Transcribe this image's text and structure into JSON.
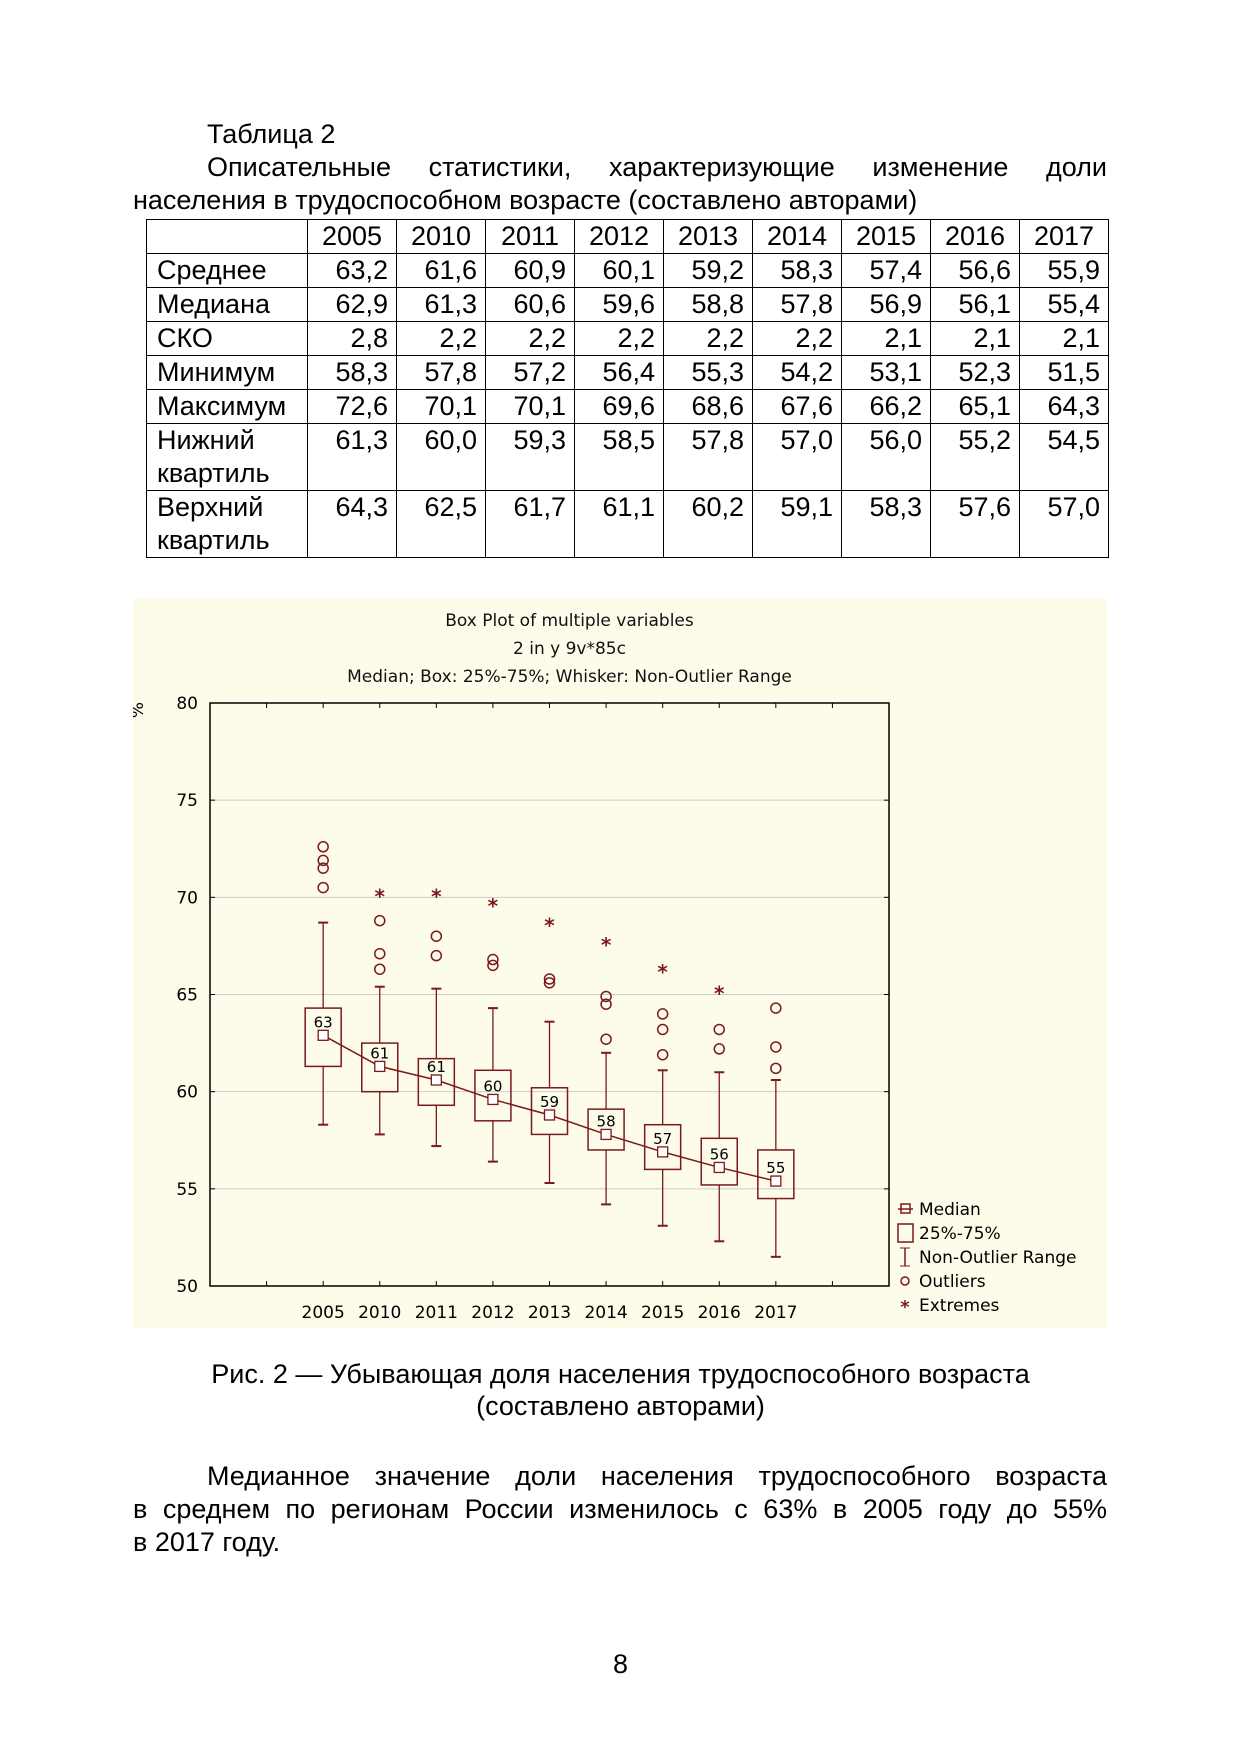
{
  "table_caption": {
    "number": "Таблица 2",
    "line1": "Описательные статистики, характеризующие изменение доли",
    "line2": "населения в трудоспособном возрасте (составлено авторами)"
  },
  "table": {
    "columns": [
      "2005",
      "2010",
      "2011",
      "2012",
      "2013",
      "2014",
      "2015",
      "2016",
      "2017"
    ],
    "rows": [
      {
        "label": "Среднее",
        "values": [
          "63,2",
          "61,6",
          "60,9",
          "60,1",
          "59,2",
          "58,3",
          "57,4",
          "56,6",
          "55,9"
        ]
      },
      {
        "label": "Медиана",
        "values": [
          "62,9",
          "61,3",
          "60,6",
          "59,6",
          "58,8",
          "57,8",
          "56,9",
          "56,1",
          "55,4"
        ]
      },
      {
        "label": "СКО",
        "values": [
          "2,8",
          "2,2",
          "2,2",
          "2,2",
          "2,2",
          "2,2",
          "2,1",
          "2,1",
          "2,1"
        ]
      },
      {
        "label": "Минимум",
        "values": [
          "58,3",
          "57,8",
          "57,2",
          "56,4",
          "55,3",
          "54,2",
          "53,1",
          "52,3",
          "51,5"
        ]
      },
      {
        "label": "Максимум",
        "values": [
          "72,6",
          "70,1",
          "70,1",
          "69,6",
          "68,6",
          "67,6",
          "66,2",
          "65,1",
          "64,3"
        ]
      },
      {
        "label": "Нижний квартиль",
        "values": [
          "61,3",
          "60,0",
          "59,3",
          "58,5",
          "57,8",
          "57,0",
          "56,0",
          "55,2",
          "54,5"
        ]
      },
      {
        "label": "Верхний квартиль",
        "values": [
          "64,3",
          "62,5",
          "61,7",
          "61,1",
          "60,2",
          "59,1",
          "58,3",
          "57,6",
          "57,0"
        ]
      }
    ]
  },
  "chart_data": {
    "type": "boxplot",
    "title": "Box Plot of multiple variables",
    "subtitle": "2 in y 9v*85c",
    "subtitle2": "Median; Box: 25%-75%; Whisker: Non-Outlier Range",
    "ylabel": "%",
    "ylim": [
      50,
      80
    ],
    "yticks": [
      "50",
      "55",
      "60",
      "65",
      "70",
      "75",
      "80"
    ],
    "categories": [
      "2005",
      "2010",
      "2011",
      "2012",
      "2013",
      "2014",
      "2015",
      "2016",
      "2017"
    ],
    "median": [
      62.9,
      61.3,
      60.6,
      59.6,
      58.8,
      57.8,
      56.9,
      56.1,
      55.4
    ],
    "median_labels": [
      "63",
      "61",
      "61",
      "60",
      "59",
      "58",
      "57",
      "56",
      "55"
    ],
    "q1": [
      61.3,
      60.0,
      59.3,
      58.5,
      57.8,
      57.0,
      56.0,
      55.2,
      54.5
    ],
    "q3": [
      64.3,
      62.5,
      61.7,
      61.1,
      60.2,
      59.1,
      58.3,
      57.6,
      57.0
    ],
    "whisker_low": [
      58.3,
      57.8,
      57.2,
      56.4,
      55.3,
      54.2,
      53.1,
      52.3,
      51.5
    ],
    "whisker_high": [
      68.7,
      65.4,
      65.3,
      64.3,
      63.6,
      62.0,
      61.1,
      61.0,
      60.6
    ],
    "outliers": [
      [
        72.6,
        71.9,
        71.5,
        70.5
      ],
      [
        68.8,
        67.1,
        66.3
      ],
      [
        68.0,
        67.0
      ],
      [
        66.8,
        66.5
      ],
      [
        65.8,
        65.6
      ],
      [
        64.9,
        64.5,
        62.7
      ],
      [
        64.0,
        63.2,
        61.9
      ],
      [
        63.2,
        62.2
      ],
      [
        64.3,
        62.3,
        61.2
      ]
    ],
    "extremes": [
      [],
      [
        70.1
      ],
      [
        70.1
      ],
      [
        69.6
      ],
      [
        68.6
      ],
      [
        67.6
      ],
      [
        66.2
      ],
      [
        65.1
      ],
      []
    ],
    "legend": [
      "Median",
      "25%-75%",
      "Non-Outlier Range",
      "Outliers",
      "Extremes"
    ],
    "legend_position": "bottom-right",
    "color": "#7a1a1a"
  },
  "figure_caption": {
    "line1": "Рис. 2 — Убывающая доля населения трудоспособного возраста",
    "line2": "(составлено авторами)"
  },
  "paragraph": {
    "line1": "Медианное значение доли населения трудоспособного возраста",
    "line2": "в среднем по регионам России изменилось с 63% в 2005 году до 55%",
    "line3": "в 2017 году."
  },
  "page_number": "8"
}
